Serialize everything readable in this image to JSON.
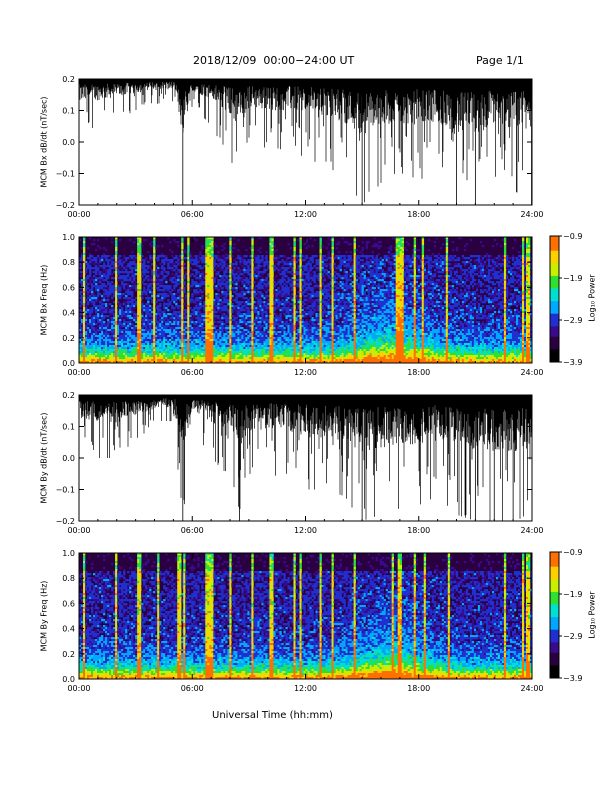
{
  "header": {
    "title": "2018/12/09  00:00−24:00 UT",
    "page": "Page 1/1"
  },
  "footer": {
    "xlabel": "Universal Time (hh:mm)"
  },
  "colors": {
    "trace": "#000000",
    "colormap": [
      "#000000",
      "#2a0040",
      "#3a0a8c",
      "#2030d0",
      "#00a8ff",
      "#00e0d0",
      "#30e030",
      "#c8f000",
      "#ffd000",
      "#ff7000",
      "#ff0000"
    ]
  },
  "chart_data": [
    {
      "type": "line",
      "panel": "bx-dbdt",
      "ylabel": "MCM Bx dB/dt (nT/sec)",
      "xlim": [
        0,
        24
      ],
      "ylim": [
        -0.2,
        0.2
      ],
      "xticks": [
        "00:00",
        "06:00",
        "12:00",
        "18:00",
        "24:00"
      ],
      "yticks": [
        "0.2",
        "0.1",
        "0.0",
        "−0.1",
        "−0.2"
      ],
      "series": [
        {
          "x": [
            0,
            1,
            2,
            3,
            4,
            5,
            5.5,
            6,
            7,
            8,
            8.5,
            9,
            10,
            11,
            12,
            13,
            14,
            15,
            16,
            17,
            18,
            19,
            20,
            21,
            22,
            23,
            24
          ],
          "y_min": [
            0.03,
            0.05,
            0.07,
            0.1,
            0.12,
            0.13,
            -0.2,
            0.12,
            0.05,
            -0.05,
            -0.15,
            0.0,
            -0.03,
            -0.02,
            -0.05,
            -0.08,
            -0.1,
            -0.2,
            -0.13,
            -0.12,
            -0.12,
            -0.1,
            -0.2,
            -0.2,
            -0.13,
            -0.15,
            -0.2
          ],
          "y_max": [
            0.2,
            0.2,
            0.2,
            0.2,
            0.2,
            0.2,
            0.2,
            0.2,
            0.2,
            0.2,
            0.2,
            0.2,
            0.2,
            0.2,
            0.2,
            0.2,
            0.2,
            0.2,
            0.2,
            0.2,
            0.2,
            0.2,
            0.2,
            0.2,
            0.2,
            0.2,
            0.2
          ]
        }
      ]
    },
    {
      "type": "heatmap",
      "panel": "bx-spectrogram",
      "ylabel": "MCM Bx Freq (Hz)",
      "xlim": [
        0,
        24
      ],
      "ylim": [
        0,
        1.0
      ],
      "xticks": [
        "00:00",
        "06:00",
        "12:00",
        "18:00",
        "24:00"
      ],
      "yticks": [
        "1.0",
        "0.8",
        "0.6",
        "0.4",
        "0.2",
        "0.0"
      ],
      "colorbar": {
        "label": "Log₁₀ Power",
        "range": [
          -3.9,
          -0.9
        ],
        "ticks": [
          "−0.9",
          "−1.9",
          "−2.9",
          "−3.9"
        ]
      },
      "bright_columns_hours": [
        0.3,
        2.0,
        3.2,
        4.0,
        5.5,
        5.8,
        6.8,
        7.0,
        8.0,
        9.2,
        10.2,
        11.4,
        11.7,
        12.8,
        13.4,
        14.6,
        16.9,
        17.1,
        17.8,
        18.2,
        19.5,
        22.6,
        23.5,
        23.8
      ]
    },
    {
      "type": "line",
      "panel": "by-dbdt",
      "ylabel": "MCM By dB/dt (nT/sec)",
      "xlim": [
        0,
        24
      ],
      "ylim": [
        -0.2,
        0.2
      ],
      "xticks": [
        "00:00",
        "06:00",
        "12:00",
        "18:00",
        "24:00"
      ],
      "yticks": [
        "0.2",
        "0.1",
        "0.0",
        "−0.1",
        "−0.2"
      ],
      "series": [
        {
          "x": [
            0,
            1,
            2,
            3,
            4,
            5,
            5.5,
            6,
            7,
            8,
            8.5,
            9,
            10,
            11,
            12,
            13,
            14,
            15,
            16,
            17,
            18,
            19,
            20,
            21,
            22,
            23,
            24
          ],
          "y_min": [
            0.02,
            0.0,
            0.0,
            0.06,
            0.1,
            0.12,
            -0.2,
            0.1,
            0.0,
            -0.06,
            -0.2,
            -0.05,
            -0.06,
            -0.05,
            -0.1,
            -0.1,
            -0.12,
            -0.2,
            -0.18,
            -0.16,
            -0.15,
            -0.12,
            -0.18,
            -0.2,
            -0.2,
            -0.2,
            -0.18
          ],
          "y_max": [
            0.2,
            0.2,
            0.2,
            0.2,
            0.2,
            0.2,
            0.2,
            0.2,
            0.2,
            0.2,
            0.2,
            0.2,
            0.2,
            0.2,
            0.2,
            0.2,
            0.2,
            0.2,
            0.2,
            0.2,
            0.2,
            0.2,
            0.2,
            0.2,
            0.2,
            0.2,
            0.2
          ]
        }
      ]
    },
    {
      "type": "heatmap",
      "panel": "by-spectrogram",
      "ylabel": "MCM By Freq (Hz)",
      "xlim": [
        0,
        24
      ],
      "ylim": [
        0,
        1.0
      ],
      "xticks": [
        "00:00",
        "06:00",
        "12:00",
        "18:00",
        "24:00"
      ],
      "yticks": [
        "1.0",
        "0.8",
        "0.6",
        "0.4",
        "0.2",
        "0.0"
      ],
      "colorbar": {
        "label": "Log₁₀ Power",
        "range": [
          -3.9,
          -0.9
        ],
        "ticks": [
          "−0.9",
          "−1.9",
          "−2.9",
          "−3.9"
        ]
      },
      "bright_columns_hours": [
        0.3,
        2.0,
        3.2,
        4.2,
        5.3,
        5.6,
        6.8,
        7.0,
        8.0,
        9.2,
        10.2,
        11.4,
        11.7,
        12.8,
        13.4,
        14.6,
        16.6,
        17.0,
        17.8,
        18.3,
        19.6,
        22.6,
        23.5,
        23.8
      ]
    }
  ]
}
